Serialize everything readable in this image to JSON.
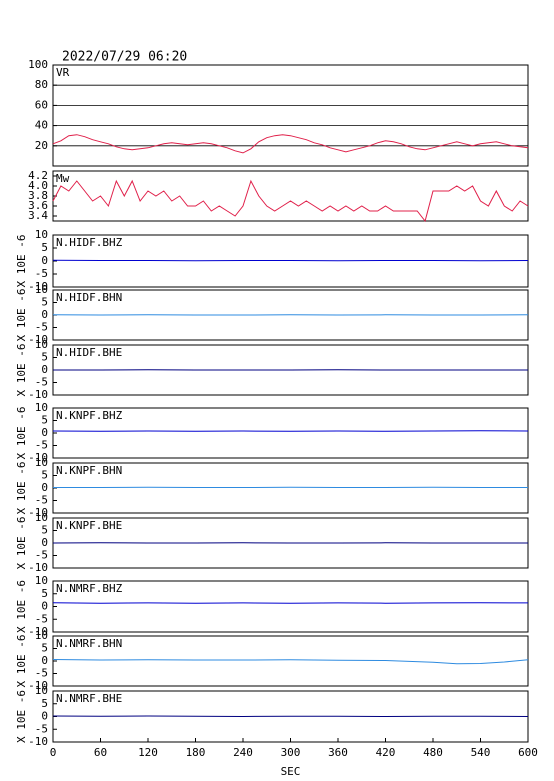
{
  "chart_data": [
    {
      "type": "line",
      "title": "2022/07/29 06:20",
      "label": "VR",
      "x": [
        0,
        10,
        20,
        30,
        40,
        50,
        60,
        70,
        80,
        90,
        100,
        110,
        120,
        130,
        140,
        150,
        160,
        170,
        180,
        190,
        200,
        210,
        220,
        230,
        240,
        250,
        260,
        270,
        280,
        290,
        300,
        310,
        320,
        330,
        340,
        350,
        360,
        370,
        380,
        390,
        400,
        410,
        420,
        430,
        440,
        450,
        460,
        470,
        480,
        490,
        500,
        510,
        520,
        530,
        540,
        550,
        560,
        570,
        580,
        590,
        600
      ],
      "series": [
        {
          "color": "#e0204a",
          "values": [
            22,
            25,
            30,
            31,
            29,
            26,
            24,
            22,
            19,
            17,
            16,
            17,
            18,
            20,
            22,
            23,
            22,
            21,
            22,
            23,
            22,
            20,
            18,
            15,
            13,
            17,
            24,
            28,
            30,
            31,
            30,
            28,
            26,
            23,
            21,
            18,
            16,
            14,
            16,
            18,
            20,
            23,
            25,
            24,
            22,
            19,
            17,
            16,
            18,
            20,
            22,
            24,
            22,
            20,
            22,
            23,
            24,
            22,
            20,
            19,
            18
          ]
        }
      ],
      "xlim": [
        0,
        600
      ],
      "ylim": [
        0,
        100
      ],
      "yticks": [
        20,
        40,
        60,
        80,
        100
      ],
      "grid": true
    },
    {
      "type": "line",
      "label": "Mw",
      "x": [
        0,
        10,
        20,
        30,
        40,
        50,
        60,
        70,
        80,
        90,
        100,
        110,
        120,
        130,
        140,
        150,
        160,
        170,
        180,
        190,
        200,
        210,
        220,
        230,
        240,
        250,
        260,
        270,
        280,
        290,
        300,
        310,
        320,
        330,
        340,
        350,
        360,
        370,
        380,
        390,
        400,
        410,
        420,
        430,
        440,
        450,
        460,
        470,
        480,
        490,
        500,
        510,
        520,
        530,
        540,
        550,
        560,
        570,
        580,
        590,
        600
      ],
      "series": [
        {
          "color": "#e0204a",
          "values": [
            3.7,
            4.0,
            3.9,
            4.1,
            3.9,
            3.7,
            3.8,
            3.6,
            4.1,
            3.8,
            4.1,
            3.7,
            3.9,
            3.8,
            3.9,
            3.7,
            3.8,
            3.6,
            3.6,
            3.7,
            3.5,
            3.6,
            3.5,
            3.4,
            3.6,
            4.1,
            3.8,
            3.6,
            3.5,
            3.6,
            3.7,
            3.6,
            3.7,
            3.6,
            3.5,
            3.6,
            3.5,
            3.6,
            3.5,
            3.6,
            3.5,
            3.5,
            3.6,
            3.5,
            3.5,
            3.5,
            3.5,
            3.3,
            3.9,
            3.9,
            3.9,
            4.0,
            3.9,
            4.0,
            3.7,
            3.6,
            3.9,
            3.6,
            3.5,
            3.7,
            3.6
          ]
        }
      ],
      "xlim": [
        0,
        600
      ],
      "ylim": [
        3.3,
        4.3
      ],
      "yticks": [
        3.4,
        3.6,
        3.8,
        {
          "value": 4,
          "label": "4.0"
        },
        4.2
      ],
      "grid": false
    },
    {
      "type": "line",
      "label": "N.HIDF.BHZ",
      "ylabel": "X 10E -6",
      "x": [
        0,
        60,
        120,
        180,
        240,
        300,
        360,
        420,
        480,
        540,
        600
      ],
      "series": [
        {
          "color": "#0000d0",
          "values": [
            0.3,
            0.2,
            0.2,
            0.1,
            0.2,
            0.2,
            0.1,
            0.2,
            0.2,
            0.1,
            0.2
          ]
        }
      ],
      "xlim": [
        0,
        600
      ],
      "ylim": [
        -10,
        10
      ],
      "yticks": [
        -10,
        -5,
        0,
        5,
        10
      ]
    },
    {
      "type": "line",
      "label": "N.HIDF.BHN",
      "ylabel": "X 10E -6",
      "x": [
        0,
        60,
        120,
        180,
        240,
        300,
        360,
        420,
        480,
        540,
        600
      ],
      "series": [
        {
          "color": "#2e8be0",
          "values": [
            0.1,
            0,
            0.1,
            0,
            0,
            0.1,
            0,
            0.1,
            0,
            0,
            0.1
          ]
        }
      ],
      "xlim": [
        0,
        600
      ],
      "ylim": [
        -10,
        10
      ],
      "yticks": [
        -10,
        -5,
        0,
        5,
        10
      ]
    },
    {
      "type": "line",
      "label": "N.HIDF.BHE",
      "ylabel": "X 10E -6",
      "x": [
        0,
        60,
        120,
        180,
        240,
        300,
        360,
        420,
        480,
        540,
        600
      ],
      "series": [
        {
          "color": "#000080",
          "values": [
            0,
            0,
            0.1,
            0,
            0,
            0,
            0.1,
            0,
            0,
            0,
            0
          ]
        }
      ],
      "xlim": [
        0,
        600
      ],
      "ylim": [
        -10,
        10
      ],
      "yticks": [
        -10,
        -5,
        0,
        5,
        10
      ]
    },
    {
      "type": "line",
      "label": "N.KNPF.BHZ",
      "ylabel": "X 10E -6",
      "x": [
        0,
        60,
        120,
        180,
        240,
        300,
        360,
        420,
        480,
        540,
        600
      ],
      "series": [
        {
          "color": "#0000d0",
          "values": [
            0.8,
            0.7,
            0.8,
            0.7,
            0.8,
            0.7,
            0.8,
            0.7,
            0.8,
            0.9,
            0.8
          ]
        }
      ],
      "xlim": [
        0,
        600
      ],
      "ylim": [
        -10,
        10
      ],
      "yticks": [
        -10,
        -5,
        0,
        5,
        10
      ]
    },
    {
      "type": "line",
      "label": "N.KNPF.BHN",
      "ylabel": "X 10E -6",
      "x": [
        0,
        60,
        120,
        180,
        240,
        300,
        360,
        420,
        480,
        540,
        600
      ],
      "series": [
        {
          "color": "#2e8be0",
          "values": [
            0.2,
            0.2,
            0.3,
            0.2,
            0.2,
            0.3,
            0.2,
            0.2,
            0.3,
            0.2,
            0.2
          ]
        }
      ],
      "xlim": [
        0,
        600
      ],
      "ylim": [
        -10,
        10
      ],
      "yticks": [
        -10,
        -5,
        0,
        5,
        10
      ]
    },
    {
      "type": "line",
      "label": "N.KNPF.BHE",
      "ylabel": "X 10E -6",
      "x": [
        0,
        60,
        120,
        180,
        240,
        300,
        360,
        420,
        480,
        540,
        600
      ],
      "series": [
        {
          "color": "#000080",
          "values": [
            0,
            0.1,
            0,
            0,
            0.1,
            0,
            0,
            0.1,
            0,
            0,
            0
          ]
        }
      ],
      "xlim": [
        0,
        600
      ],
      "ylim": [
        -10,
        10
      ],
      "yticks": [
        -10,
        -5,
        0,
        5,
        10
      ]
    },
    {
      "type": "line",
      "label": "N.NMRF.BHZ",
      "ylabel": "X 10E -6",
      "x": [
        0,
        60,
        120,
        180,
        240,
        300,
        360,
        420,
        480,
        540,
        600
      ],
      "series": [
        {
          "color": "#0000d0",
          "values": [
            1.5,
            1.3,
            1.4,
            1.3,
            1.4,
            1.3,
            1.4,
            1.3,
            1.4,
            1.5,
            1.4
          ]
        }
      ],
      "xlim": [
        0,
        600
      ],
      "ylim": [
        -10,
        10
      ],
      "yticks": [
        -10,
        -5,
        0,
        5,
        10
      ]
    },
    {
      "type": "line",
      "label": "N.NMRF.BHN",
      "ylabel": "X 10E -6",
      "x": [
        0,
        60,
        120,
        180,
        240,
        300,
        360,
        420,
        480,
        510,
        540,
        570,
        600
      ],
      "series": [
        {
          "color": "#2e8be0",
          "values": [
            0.6,
            0.4,
            0.5,
            0.4,
            0.4,
            0.5,
            0.3,
            0.2,
            -0.5,
            -1.1,
            -1.0,
            -0.4,
            0.5
          ]
        }
      ],
      "xlim": [
        0,
        600
      ],
      "ylim": [
        -10,
        10
      ],
      "yticks": [
        -10,
        -5,
        0,
        5,
        10
      ]
    },
    {
      "type": "line",
      "label": "N.NMRF.BHE",
      "ylabel": "X 10E -6",
      "x": [
        0,
        60,
        120,
        180,
        240,
        300,
        360,
        420,
        480,
        540,
        600
      ],
      "series": [
        {
          "color": "#000080",
          "values": [
            0.2,
            0.1,
            0.2,
            0.1,
            0,
            0.1,
            0.1,
            0,
            0.1,
            0.1,
            0
          ]
        }
      ],
      "xlim": [
        0,
        600
      ],
      "ylim": [
        -10,
        10
      ],
      "yticks": [
        -10,
        -5,
        0,
        5,
        10
      ],
      "xticks": [
        0,
        60,
        120,
        180,
        240,
        300,
        360,
        420,
        480,
        540,
        600
      ],
      "xlabel": "SEC"
    }
  ]
}
